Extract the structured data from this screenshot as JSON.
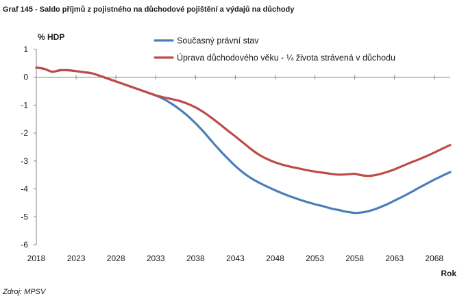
{
  "chart_title": "Graf 145 - Saldo příjmů z pojistného na důchodové pojištění a výdajů na důchody",
  "source_note": "Zdroj: MPSV",
  "chart_data": {
    "type": "line",
    "title": "Graf 145 - Saldo příjmů z pojistného na důchodové pojištění a výdajů na důchody",
    "ylabel": "% HDP",
    "xlabel": "Rok",
    "ylim": [
      -6,
      1
    ],
    "xlim": [
      2018,
      2070
    ],
    "yticks": [
      1,
      0,
      -1,
      -2,
      -3,
      -4,
      -5,
      -6
    ],
    "xticks": [
      2018,
      2023,
      2028,
      2033,
      2038,
      2043,
      2048,
      2053,
      2058,
      2063,
      2068
    ],
    "grid": false,
    "legend_position": "top-center",
    "series": [
      {
        "name": "Současný právní stav",
        "color": "#4a7ebb",
        "x": [
          2018,
          2019,
          2020,
          2021,
          2022,
          2023,
          2024,
          2025,
          2026,
          2027,
          2028,
          2029,
          2030,
          2031,
          2032,
          2033,
          2034,
          2035,
          2036,
          2037,
          2038,
          2039,
          2040,
          2041,
          2042,
          2043,
          2044,
          2045,
          2046,
          2047,
          2048,
          2049,
          2050,
          2051,
          2052,
          2053,
          2054,
          2055,
          2056,
          2057,
          2058,
          2059,
          2060,
          2061,
          2062,
          2063,
          2064,
          2065,
          2066,
          2067,
          2068,
          2069,
          2070
        ],
        "y": [
          0.35,
          0.3,
          0.2,
          0.25,
          0.25,
          0.22,
          0.18,
          0.14,
          0.05,
          -0.05,
          -0.15,
          -0.25,
          -0.35,
          -0.45,
          -0.55,
          -0.65,
          -0.78,
          -0.95,
          -1.15,
          -1.38,
          -1.65,
          -1.95,
          -2.28,
          -2.6,
          -2.9,
          -3.18,
          -3.42,
          -3.62,
          -3.78,
          -3.92,
          -4.05,
          -4.17,
          -4.28,
          -4.38,
          -4.47,
          -4.55,
          -4.62,
          -4.7,
          -4.76,
          -4.82,
          -4.86,
          -4.84,
          -4.78,
          -4.68,
          -4.56,
          -4.42,
          -4.28,
          -4.13,
          -3.97,
          -3.82,
          -3.67,
          -3.53,
          -3.4
        ]
      },
      {
        "name": "Úprava důchodového věku - ¼ života strávená v důchodu",
        "color": "#be4b48",
        "x": [
          2018,
          2019,
          2020,
          2021,
          2022,
          2023,
          2024,
          2025,
          2026,
          2027,
          2028,
          2029,
          2030,
          2031,
          2032,
          2033,
          2034,
          2035,
          2036,
          2037,
          2038,
          2039,
          2040,
          2041,
          2042,
          2043,
          2044,
          2045,
          2046,
          2047,
          2048,
          2049,
          2050,
          2051,
          2052,
          2053,
          2054,
          2055,
          2056,
          2057,
          2058,
          2059,
          2060,
          2061,
          2062,
          2063,
          2064,
          2065,
          2066,
          2067,
          2068,
          2069,
          2070
        ],
        "y": [
          0.35,
          0.3,
          0.2,
          0.25,
          0.25,
          0.22,
          0.18,
          0.14,
          0.05,
          -0.05,
          -0.15,
          -0.25,
          -0.35,
          -0.45,
          -0.55,
          -0.65,
          -0.72,
          -0.78,
          -0.85,
          -0.95,
          -1.08,
          -1.25,
          -1.45,
          -1.67,
          -1.9,
          -2.12,
          -2.35,
          -2.58,
          -2.78,
          -2.93,
          -3.05,
          -3.14,
          -3.21,
          -3.27,
          -3.33,
          -3.38,
          -3.42,
          -3.46,
          -3.49,
          -3.48,
          -3.46,
          -3.52,
          -3.53,
          -3.48,
          -3.4,
          -3.3,
          -3.18,
          -3.06,
          -2.95,
          -2.83,
          -2.7,
          -2.56,
          -2.43
        ]
      }
    ]
  }
}
